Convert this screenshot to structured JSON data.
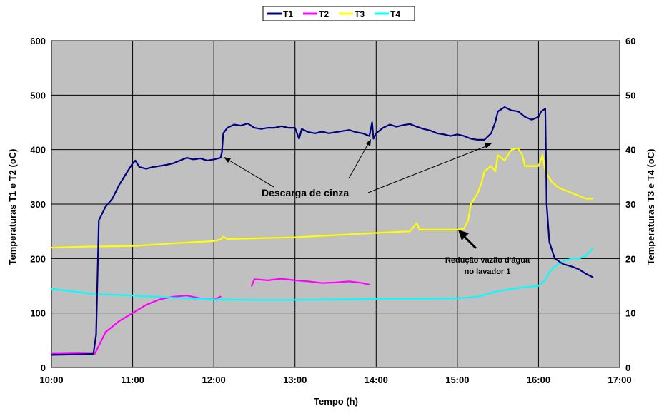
{
  "chart_data": {
    "type": "line",
    "xlabel": "Tempo (h)",
    "ylabel": "Temperaturas T1 e T2  (oC)",
    "y2label": "Temperaturas T3 e T4  (oC)",
    "x_ticks": [
      "10:00",
      "11:00",
      "12:00",
      "13:00",
      "14:00",
      "15:00",
      "16:00",
      "17:00"
    ],
    "xlim": [
      "10:00",
      "17:00"
    ],
    "ylim": [
      0,
      600
    ],
    "y2lim": [
      0,
      60
    ],
    "y_ticks": [
      0,
      100,
      200,
      300,
      400,
      500,
      600
    ],
    "y2_ticks": [
      0,
      10,
      20,
      30,
      40,
      50,
      60
    ],
    "grid": true,
    "legend_position": "top-center",
    "plot_background": "#c0c0c0",
    "series": [
      {
        "name": "T1",
        "axis": "left",
        "color": "#000080",
        "points": [
          [
            "10:00",
            23
          ],
          [
            "10:20",
            24
          ],
          [
            "10:31",
            25
          ],
          [
            "10:33",
            60
          ],
          [
            "10:35",
            270
          ],
          [
            "10:37",
            280
          ],
          [
            "10:40",
            295
          ],
          [
            "10:45",
            310
          ],
          [
            "10:50",
            335
          ],
          [
            "10:55",
            355
          ],
          [
            "11:00",
            375
          ],
          [
            "11:02",
            380
          ],
          [
            "11:05",
            368
          ],
          [
            "11:10",
            365
          ],
          [
            "11:15",
            368
          ],
          [
            "11:20",
            370
          ],
          [
            "11:25",
            372
          ],
          [
            "11:30",
            375
          ],
          [
            "11:35",
            380
          ],
          [
            "11:40",
            385
          ],
          [
            "11:45",
            382
          ],
          [
            "11:50",
            384
          ],
          [
            "11:55",
            380
          ],
          [
            "12:00",
            382
          ],
          [
            "12:05",
            385
          ],
          [
            "12:06",
            395
          ],
          [
            "12:07",
            430
          ],
          [
            "12:10",
            440
          ],
          [
            "12:15",
            446
          ],
          [
            "12:20",
            444
          ],
          [
            "12:25",
            448
          ],
          [
            "12:30",
            440
          ],
          [
            "12:35",
            438
          ],
          [
            "12:40",
            440
          ],
          [
            "12:45",
            440
          ],
          [
            "12:50",
            443
          ],
          [
            "12:55",
            440
          ],
          [
            "13:00",
            440
          ],
          [
            "13:03",
            420
          ],
          [
            "13:05",
            438
          ],
          [
            "13:10",
            432
          ],
          [
            "13:15",
            430
          ],
          [
            "13:20",
            433
          ],
          [
            "13:25",
            430
          ],
          [
            "13:30",
            432
          ],
          [
            "13:35",
            434
          ],
          [
            "13:40",
            436
          ],
          [
            "13:45",
            432
          ],
          [
            "13:50",
            430
          ],
          [
            "13:55",
            425
          ],
          [
            "13:57",
            450
          ],
          [
            "13:58",
            420
          ],
          [
            "14:00",
            430
          ],
          [
            "14:05",
            440
          ],
          [
            "14:10",
            446
          ],
          [
            "14:15",
            442
          ],
          [
            "14:20",
            445
          ],
          [
            "14:25",
            447
          ],
          [
            "14:30",
            442
          ],
          [
            "14:35",
            438
          ],
          [
            "14:40",
            435
          ],
          [
            "14:45",
            430
          ],
          [
            "14:50",
            428
          ],
          [
            "14:55",
            425
          ],
          [
            "15:00",
            428
          ],
          [
            "15:05",
            425
          ],
          [
            "15:10",
            420
          ],
          [
            "15:15",
            418
          ],
          [
            "15:20",
            418
          ],
          [
            "15:25",
            430
          ],
          [
            "15:28",
            450
          ],
          [
            "15:30",
            470
          ],
          [
            "15:35",
            478
          ],
          [
            "15:40",
            472
          ],
          [
            "15:45",
            470
          ],
          [
            "15:50",
            460
          ],
          [
            "15:55",
            455
          ],
          [
            "16:00",
            460
          ],
          [
            "16:02",
            470
          ],
          [
            "16:05",
            475
          ],
          [
            "16:06",
            300
          ],
          [
            "16:08",
            230
          ],
          [
            "16:12",
            200
          ],
          [
            "16:18",
            190
          ],
          [
            "16:25",
            185
          ],
          [
            "16:30",
            180
          ],
          [
            "16:35",
            172
          ],
          [
            "16:40",
            166
          ]
        ]
      },
      {
        "name": "T2",
        "axis": "left",
        "color": "#ff00ff",
        "points": [
          [
            "10:00",
            25
          ],
          [
            "10:20",
            26
          ],
          [
            "10:32",
            25
          ],
          [
            "10:35",
            40
          ],
          [
            "10:40",
            65
          ],
          [
            "10:50",
            85
          ],
          [
            "11:00",
            100
          ],
          [
            "11:10",
            115
          ],
          [
            "11:20",
            125
          ],
          [
            "11:30",
            130
          ],
          [
            "11:40",
            132
          ],
          [
            "11:50",
            127
          ],
          [
            "12:00",
            125
          ],
          [
            "12:05",
            130
          ]
        ],
        "points_2": [
          [
            "12:28",
            150
          ],
          [
            "12:30",
            162
          ],
          [
            "12:40",
            160
          ],
          [
            "12:50",
            163
          ],
          [
            "13:00",
            160
          ],
          [
            "13:10",
            158
          ],
          [
            "13:20",
            155
          ],
          [
            "13:30",
            156
          ],
          [
            "13:40",
            158
          ],
          [
            "13:50",
            155
          ],
          [
            "13:55",
            152
          ]
        ]
      },
      {
        "name": "T3",
        "axis": "right",
        "color": "#ffff00",
        "points": [
          [
            "10:00",
            22
          ],
          [
            "10:30",
            22.2
          ],
          [
            "11:00",
            22.3
          ],
          [
            "11:30",
            22.8
          ],
          [
            "12:00",
            23.2
          ],
          [
            "12:05",
            23.5
          ],
          [
            "12:07",
            24
          ],
          [
            "12:10",
            23.6
          ],
          [
            "12:30",
            23.7
          ],
          [
            "13:00",
            23.9
          ],
          [
            "13:30",
            24.3
          ],
          [
            "14:00",
            24.7
          ],
          [
            "14:25",
            25
          ],
          [
            "14:30",
            26.5
          ],
          [
            "14:32",
            25.3
          ],
          [
            "14:40",
            25.3
          ],
          [
            "15:00",
            25.3
          ],
          [
            "15:05",
            25.5
          ],
          [
            "15:08",
            27
          ],
          [
            "15:10",
            30
          ],
          [
            "15:15",
            32
          ],
          [
            "15:18",
            34
          ],
          [
            "15:20",
            36
          ],
          [
            "15:25",
            37
          ],
          [
            "15:28",
            36
          ],
          [
            "15:30",
            39
          ],
          [
            "15:35",
            38
          ],
          [
            "15:40",
            40
          ],
          [
            "15:45",
            40.2
          ],
          [
            "15:48",
            39
          ],
          [
            "15:50",
            37
          ],
          [
            "15:55",
            37
          ],
          [
            "16:00",
            37
          ],
          [
            "16:03",
            39
          ],
          [
            "16:05",
            36
          ],
          [
            "16:10",
            34
          ],
          [
            "16:15",
            33
          ],
          [
            "16:20",
            32.5
          ],
          [
            "16:30",
            31.5
          ],
          [
            "16:35",
            31
          ],
          [
            "16:40",
            31
          ]
        ]
      },
      {
        "name": "T4",
        "axis": "right",
        "color": "#00ffff",
        "points": [
          [
            "10:00",
            14.4
          ],
          [
            "10:15",
            14
          ],
          [
            "10:30",
            13.5
          ],
          [
            "11:00",
            13.2
          ],
          [
            "11:30",
            12.8
          ],
          [
            "12:00",
            12.5
          ],
          [
            "12:30",
            12.4
          ],
          [
            "13:00",
            12.4
          ],
          [
            "13:30",
            12.5
          ],
          [
            "14:00",
            12.6
          ],
          [
            "14:30",
            12.6
          ],
          [
            "15:00",
            12.7
          ],
          [
            "15:15",
            13
          ],
          [
            "15:30",
            14
          ],
          [
            "15:45",
            14.6
          ],
          [
            "16:00",
            15
          ],
          [
            "16:05",
            16
          ],
          [
            "16:08",
            17.5
          ],
          [
            "16:12",
            18.5
          ],
          [
            "16:18",
            19.5
          ],
          [
            "16:25",
            20
          ],
          [
            "16:30",
            20
          ],
          [
            "16:35",
            20.5
          ],
          [
            "16:40",
            21.8
          ]
        ]
      }
    ],
    "annotations": [
      {
        "text": "Descarga de cinza",
        "size": 14
      },
      {
        "text": "Redução vazão d'água",
        "size": 11
      },
      {
        "text": "no lavador 1",
        "size": 11
      }
    ]
  }
}
